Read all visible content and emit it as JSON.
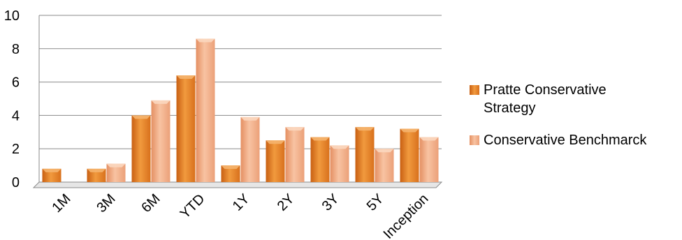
{
  "chart_data": {
    "type": "bar",
    "categories": [
      "1M",
      "3M",
      "6M",
      "YTD",
      "1Y",
      "2Y",
      "3Y",
      "5Y",
      "Inception"
    ],
    "series": [
      {
        "name": "Pratte Conservative Strategy",
        "values": [
          0.8,
          0.8,
          4.0,
          6.4,
          1.0,
          2.5,
          2.7,
          3.3,
          3.2
        ],
        "color": "#E07A1F"
      },
      {
        "name": "Conservative Benchmarck",
        "values": [
          0,
          1.1,
          4.9,
          8.6,
          3.9,
          3.3,
          2.2,
          2.0,
          2.7
        ],
        "color": "#F2A77A"
      }
    ],
    "ylim": [
      0,
      10
    ],
    "yticks": [
      "0",
      "2",
      "4",
      "6",
      "8",
      "10"
    ],
    "grid": true,
    "legend": "right",
    "title": "",
    "xlabel": "",
    "ylabel": ""
  }
}
